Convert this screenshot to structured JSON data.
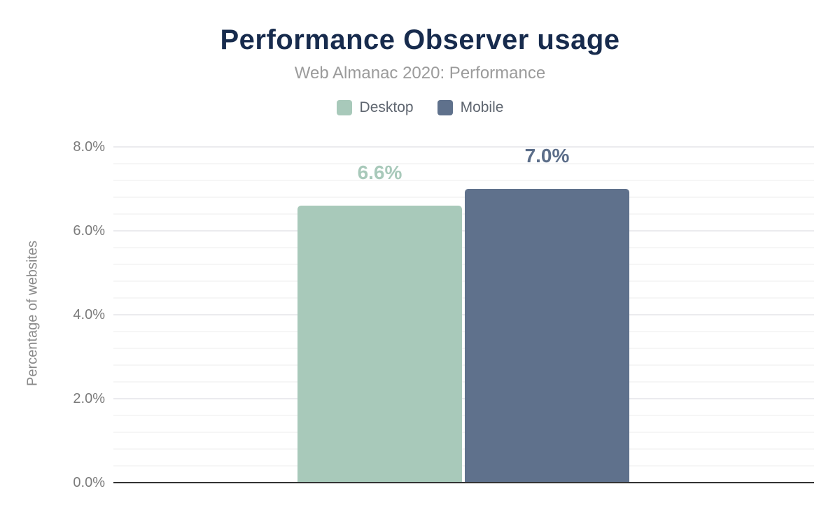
{
  "chart_data": {
    "type": "bar",
    "title": "Performance Observer usage",
    "subtitle": "Web Almanac 2020: Performance",
    "ylabel": "Percentage of websites",
    "categories": [
      "Desktop",
      "Mobile"
    ],
    "series": [
      {
        "name": "Desktop",
        "value": 6.6,
        "value_label": "6.6%",
        "color": "#a8c9ba",
        "label_color": "#a8c9ba"
      },
      {
        "name": "Mobile",
        "value": 7.0,
        "value_label": "7.0%",
        "color": "#5f718c",
        "label_color": "#5b6d89"
      }
    ],
    "ylim": [
      0,
      8
    ],
    "yticks": [
      {
        "value": 0,
        "label": "0.0%"
      },
      {
        "value": 2,
        "label": "2.0%"
      },
      {
        "value": 4,
        "label": "4.0%"
      },
      {
        "value": 6,
        "label": "6.0%"
      },
      {
        "value": 8,
        "label": "8.0%"
      }
    ],
    "minor_gridline_step": 0.4,
    "grid": "horizontal",
    "legend_position": "top",
    "xlabel": ""
  },
  "colors": {
    "title": "#172b4d",
    "subtitle": "#9b9b9b",
    "legend_text": "#5f6670",
    "tick_text": "#7b7b7b",
    "axis_title_text": "#8a8a8a",
    "axis_line": "#333333",
    "gridline_major": "#ebebee",
    "gridline_minor": "#f6f6f6",
    "background": "#ffffff"
  }
}
